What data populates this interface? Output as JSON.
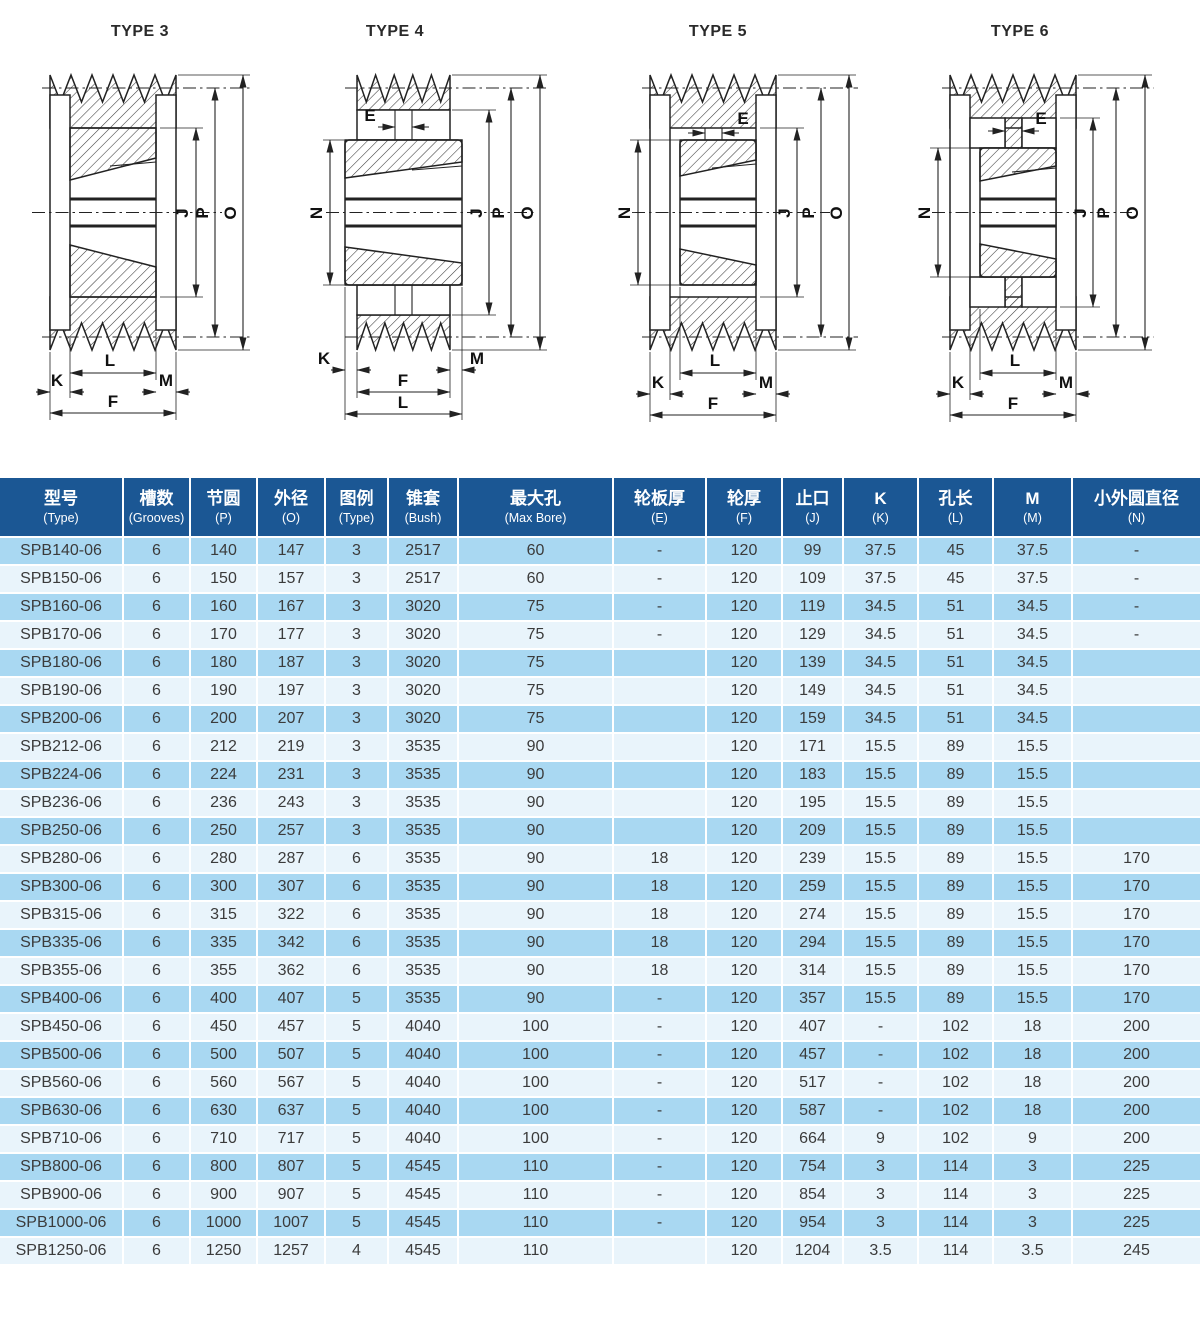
{
  "diagrams": [
    {
      "title": "TYPE 3",
      "labels": {
        "J": "J",
        "P": "P",
        "O": "O",
        "L": "L",
        "K": "K",
        "M": "M",
        "F": "F"
      }
    },
    {
      "title": "TYPE 4",
      "labels": {
        "E": "E",
        "N": "N",
        "J": "J",
        "P": "P",
        "O": "O",
        "K": "K",
        "M": "M",
        "F": "F",
        "L": "L"
      }
    },
    {
      "title": "TYPE 5",
      "labels": {
        "E": "E",
        "N": "N",
        "J": "J",
        "P": "P",
        "O": "O",
        "L": "L",
        "K": "K",
        "M": "M",
        "F": "F"
      }
    },
    {
      "title": "TYPE 6",
      "labels": {
        "E": "E",
        "N": "N",
        "J": "J",
        "P": "P",
        "O": "O",
        "L": "L",
        "K": "K",
        "M": "M",
        "F": "F"
      }
    }
  ],
  "table": {
    "columns": [
      {
        "zh": "型号",
        "en": "(Type)"
      },
      {
        "zh": "槽数",
        "en": "(Grooves)"
      },
      {
        "zh": "节圆",
        "en": "(P)"
      },
      {
        "zh": "外径",
        "en": "(O)"
      },
      {
        "zh": "图例",
        "en": "(Type)"
      },
      {
        "zh": "锥套",
        "en": "(Bush)"
      },
      {
        "zh": "最大孔",
        "en": "(Max Bore)"
      },
      {
        "zh": "轮板厚",
        "en": "(E)"
      },
      {
        "zh": "轮厚",
        "en": "(F)"
      },
      {
        "zh": "止口",
        "en": "(J)"
      },
      {
        "zh": "K",
        "en": "(K)"
      },
      {
        "zh": "孔长",
        "en": "(L)"
      },
      {
        "zh": "M",
        "en": "(M)"
      },
      {
        "zh": "小外圆直径",
        "en": "(N)"
      }
    ],
    "rows": [
      [
        "SPB140-06",
        "6",
        "140",
        "147",
        "3",
        "2517",
        "60",
        "-",
        "120",
        "99",
        "37.5",
        "45",
        "37.5",
        "-"
      ],
      [
        "SPB150-06",
        "6",
        "150",
        "157",
        "3",
        "2517",
        "60",
        "-",
        "120",
        "109",
        "37.5",
        "45",
        "37.5",
        "-"
      ],
      [
        "SPB160-06",
        "6",
        "160",
        "167",
        "3",
        "3020",
        "75",
        "-",
        "120",
        "119",
        "34.5",
        "51",
        "34.5",
        "-"
      ],
      [
        "SPB170-06",
        "6",
        "170",
        "177",
        "3",
        "3020",
        "75",
        "-",
        "120",
        "129",
        "34.5",
        "51",
        "34.5",
        "-"
      ],
      [
        "SPB180-06",
        "6",
        "180",
        "187",
        "3",
        "3020",
        "75",
        "",
        "120",
        "139",
        "34.5",
        "51",
        "34.5",
        ""
      ],
      [
        "SPB190-06",
        "6",
        "190",
        "197",
        "3",
        "3020",
        "75",
        "",
        "120",
        "149",
        "34.5",
        "51",
        "34.5",
        ""
      ],
      [
        "SPB200-06",
        "6",
        "200",
        "207",
        "3",
        "3020",
        "75",
        "",
        "120",
        "159",
        "34.5",
        "51",
        "34.5",
        ""
      ],
      [
        "SPB212-06",
        "6",
        "212",
        "219",
        "3",
        "3535",
        "90",
        "",
        "120",
        "171",
        "15.5",
        "89",
        "15.5",
        ""
      ],
      [
        "SPB224-06",
        "6",
        "224",
        "231",
        "3",
        "3535",
        "90",
        "",
        "120",
        "183",
        "15.5",
        "89",
        "15.5",
        ""
      ],
      [
        "SPB236-06",
        "6",
        "236",
        "243",
        "3",
        "3535",
        "90",
        "",
        "120",
        "195",
        "15.5",
        "89",
        "15.5",
        ""
      ],
      [
        "SPB250-06",
        "6",
        "250",
        "257",
        "3",
        "3535",
        "90",
        "",
        "120",
        "209",
        "15.5",
        "89",
        "15.5",
        ""
      ],
      [
        "SPB280-06",
        "6",
        "280",
        "287",
        "6",
        "3535",
        "90",
        "18",
        "120",
        "239",
        "15.5",
        "89",
        "15.5",
        "170"
      ],
      [
        "SPB300-06",
        "6",
        "300",
        "307",
        "6",
        "3535",
        "90",
        "18",
        "120",
        "259",
        "15.5",
        "89",
        "15.5",
        "170"
      ],
      [
        "SPB315-06",
        "6",
        "315",
        "322",
        "6",
        "3535",
        "90",
        "18",
        "120",
        "274",
        "15.5",
        "89",
        "15.5",
        "170"
      ],
      [
        "SPB335-06",
        "6",
        "335",
        "342",
        "6",
        "3535",
        "90",
        "18",
        "120",
        "294",
        "15.5",
        "89",
        "15.5",
        "170"
      ],
      [
        "SPB355-06",
        "6",
        "355",
        "362",
        "6",
        "3535",
        "90",
        "18",
        "120",
        "314",
        "15.5",
        "89",
        "15.5",
        "170"
      ],
      [
        "SPB400-06",
        "6",
        "400",
        "407",
        "5",
        "3535",
        "90",
        "-",
        "120",
        "357",
        "15.5",
        "89",
        "15.5",
        "170"
      ],
      [
        "SPB450-06",
        "6",
        "450",
        "457",
        "5",
        "4040",
        "100",
        "-",
        "120",
        "407",
        "-",
        "102",
        "18",
        "200"
      ],
      [
        "SPB500-06",
        "6",
        "500",
        "507",
        "5",
        "4040",
        "100",
        "-",
        "120",
        "457",
        "-",
        "102",
        "18",
        "200"
      ],
      [
        "SPB560-06",
        "6",
        "560",
        "567",
        "5",
        "4040",
        "100",
        "-",
        "120",
        "517",
        "-",
        "102",
        "18",
        "200"
      ],
      [
        "SPB630-06",
        "6",
        "630",
        "637",
        "5",
        "4040",
        "100",
        "-",
        "120",
        "587",
        "-",
        "102",
        "18",
        "200"
      ],
      [
        "SPB710-06",
        "6",
        "710",
        "717",
        "5",
        "4040",
        "100",
        "-",
        "120",
        "664",
        "9",
        "102",
        "9",
        "200"
      ],
      [
        "SPB800-06",
        "6",
        "800",
        "807",
        "5",
        "4545",
        "110",
        "-",
        "120",
        "754",
        "3",
        "114",
        "3",
        "225"
      ],
      [
        "SPB900-06",
        "6",
        "900",
        "907",
        "5",
        "4545",
        "110",
        "-",
        "120",
        "854",
        "3",
        "114",
        "3",
        "225"
      ],
      [
        "SPB1000-06",
        "6",
        "1000",
        "1007",
        "5",
        "4545",
        "110",
        "-",
        "120",
        "954",
        "3",
        "114",
        "3",
        "225"
      ],
      [
        "SPB1250-06",
        "6",
        "1250",
        "1257",
        "4",
        "4545",
        "110",
        "",
        "120",
        "1204",
        "3.5",
        "114",
        "3.5",
        "245"
      ]
    ]
  },
  "colors": {
    "header_bg": "#1b5794",
    "header_text": "#ffffff",
    "row_odd_bg": "#a9d8f2",
    "row_even_bg": "#e9f4fb",
    "cell_text": "#3b3b3b",
    "drawing_line": "#222222"
  }
}
